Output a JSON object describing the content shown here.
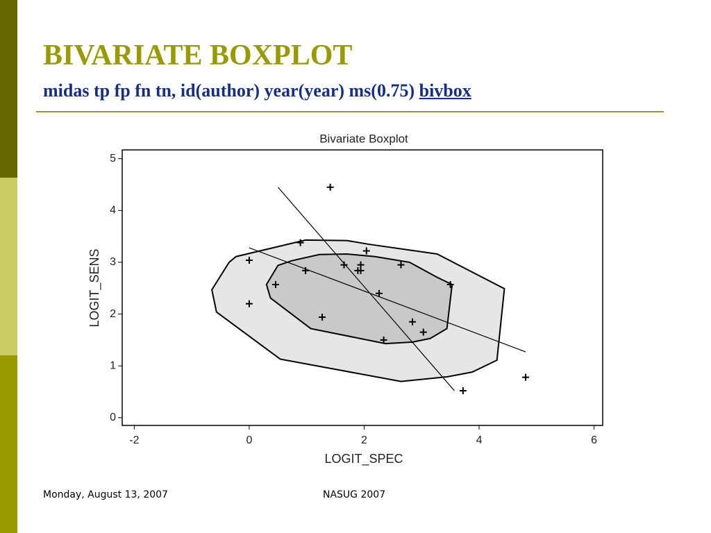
{
  "slide": {
    "title": "BIVARIATE BOXPLOT",
    "subtitle": "midas tp fp fn tn, id(author) year(year) ms(0.75)",
    "subtitle_link": "bivbox",
    "footer_date": "Monday, August 13, 2007",
    "footer_event": "NASUG 2007"
  },
  "chart_data": {
    "type": "scatter",
    "title": "Bivariate Boxplot",
    "x_label": "LOGIT_SPEC",
    "y_label": "LOGIT_SENS",
    "xlim": [
      -2.21,
      6.15
    ],
    "ylim": [
      -0.15,
      5.17
    ],
    "xticks": [
      -2,
      0,
      2,
      4,
      6
    ],
    "yticks": [
      0,
      1,
      2,
      3,
      4,
      5
    ],
    "points": {
      "x": [
        1.41,
        0.89,
        2.04,
        0,
        1.65,
        1.94,
        2.64,
        0.98,
        1.89,
        1.94,
        0.46,
        3.5,
        2.26,
        0,
        1.27,
        2.84,
        3.03,
        2.34,
        3.72,
        4.81
      ],
      "y": [
        4.45,
        3.38,
        3.22,
        3.04,
        2.95,
        2.95,
        2.95,
        2.84,
        2.84,
        2.84,
        2.57,
        2.57,
        2.4,
        2.2,
        1.94,
        1.85,
        1.65,
        1.5,
        0.52,
        0.78
      ]
    },
    "fence": {
      "color": "#e6e6e6",
      "x": [
        -0.65,
        -0.35,
        -0.23,
        0.98,
        1.7,
        2.07,
        3.27,
        4.44,
        4.31,
        3.88,
        3.45,
        2.64,
        0.54,
        -0.57
      ],
      "y": [
        2.47,
        3.0,
        3.11,
        3.43,
        3.42,
        3.35,
        3.16,
        2.49,
        1.11,
        0.88,
        0.79,
        0.7,
        1.13,
        2.04
      ]
    },
    "hinge": {
      "color": "#c9c9c9",
      "x": [
        0.3,
        0.5,
        0.74,
        1.22,
        1.7,
        2.19,
        2.79,
        3.27,
        3.53,
        3.44,
        3.15,
        2.84,
        2.37,
        1.07,
        0.37
      ],
      "y": [
        2.57,
        2.94,
        3.03,
        3.15,
        3.16,
        3.11,
        3.0,
        2.71,
        2.57,
        1.72,
        1.53,
        1.46,
        1.43,
        1.72,
        2.31
      ]
    },
    "regression_lines": [
      {
        "x": [
          0.5,
          3.57
        ],
        "y": [
          4.45,
          0.52
        ]
      },
      {
        "x": [
          0,
          4.81
        ],
        "y": [
          3.28,
          1.27
        ]
      }
    ]
  }
}
